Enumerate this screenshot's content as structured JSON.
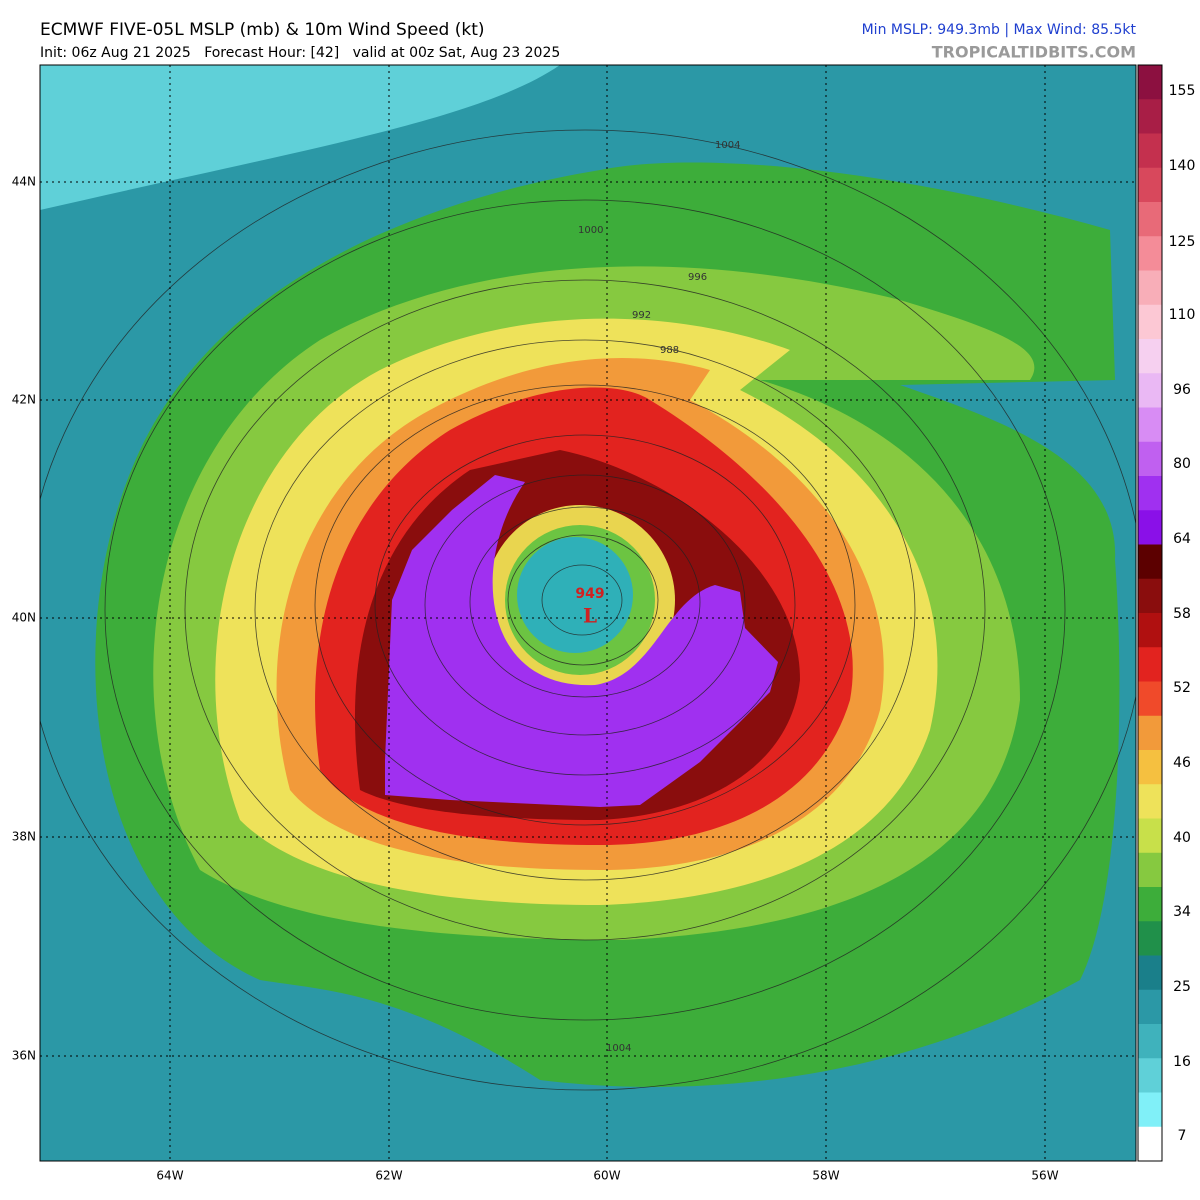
{
  "header": {
    "title": "ECMWF FIVE-05L MSLP (mb) & 10m Wind Speed (kt)",
    "subtitle": "Init: 06z Aug 21 2025   Forecast Hour: [42]   valid at 00z Sat, Aug 23 2025",
    "stats": "Min MSLP: 949.3mb | Max Wind: 85.5kt",
    "source": "TROPICALTIDBITS.COM"
  },
  "map": {
    "lat_labels": [
      "44N",
      "42N",
      "40N",
      "38N",
      "36N"
    ],
    "lon_labels": [
      "64W",
      "62W",
      "60W",
      "58W",
      "56W"
    ],
    "isobar_labels": [
      "1004",
      "1000",
      "996",
      "992",
      "988",
      "1004"
    ],
    "center_pressure": "949",
    "center_marker": "L"
  },
  "colorbar": {
    "labels": [
      "155",
      "140",
      "125",
      "110",
      "96",
      "80",
      "64",
      "58",
      "52",
      "46",
      "40",
      "34",
      "25",
      "16",
      "7"
    ]
  }
}
